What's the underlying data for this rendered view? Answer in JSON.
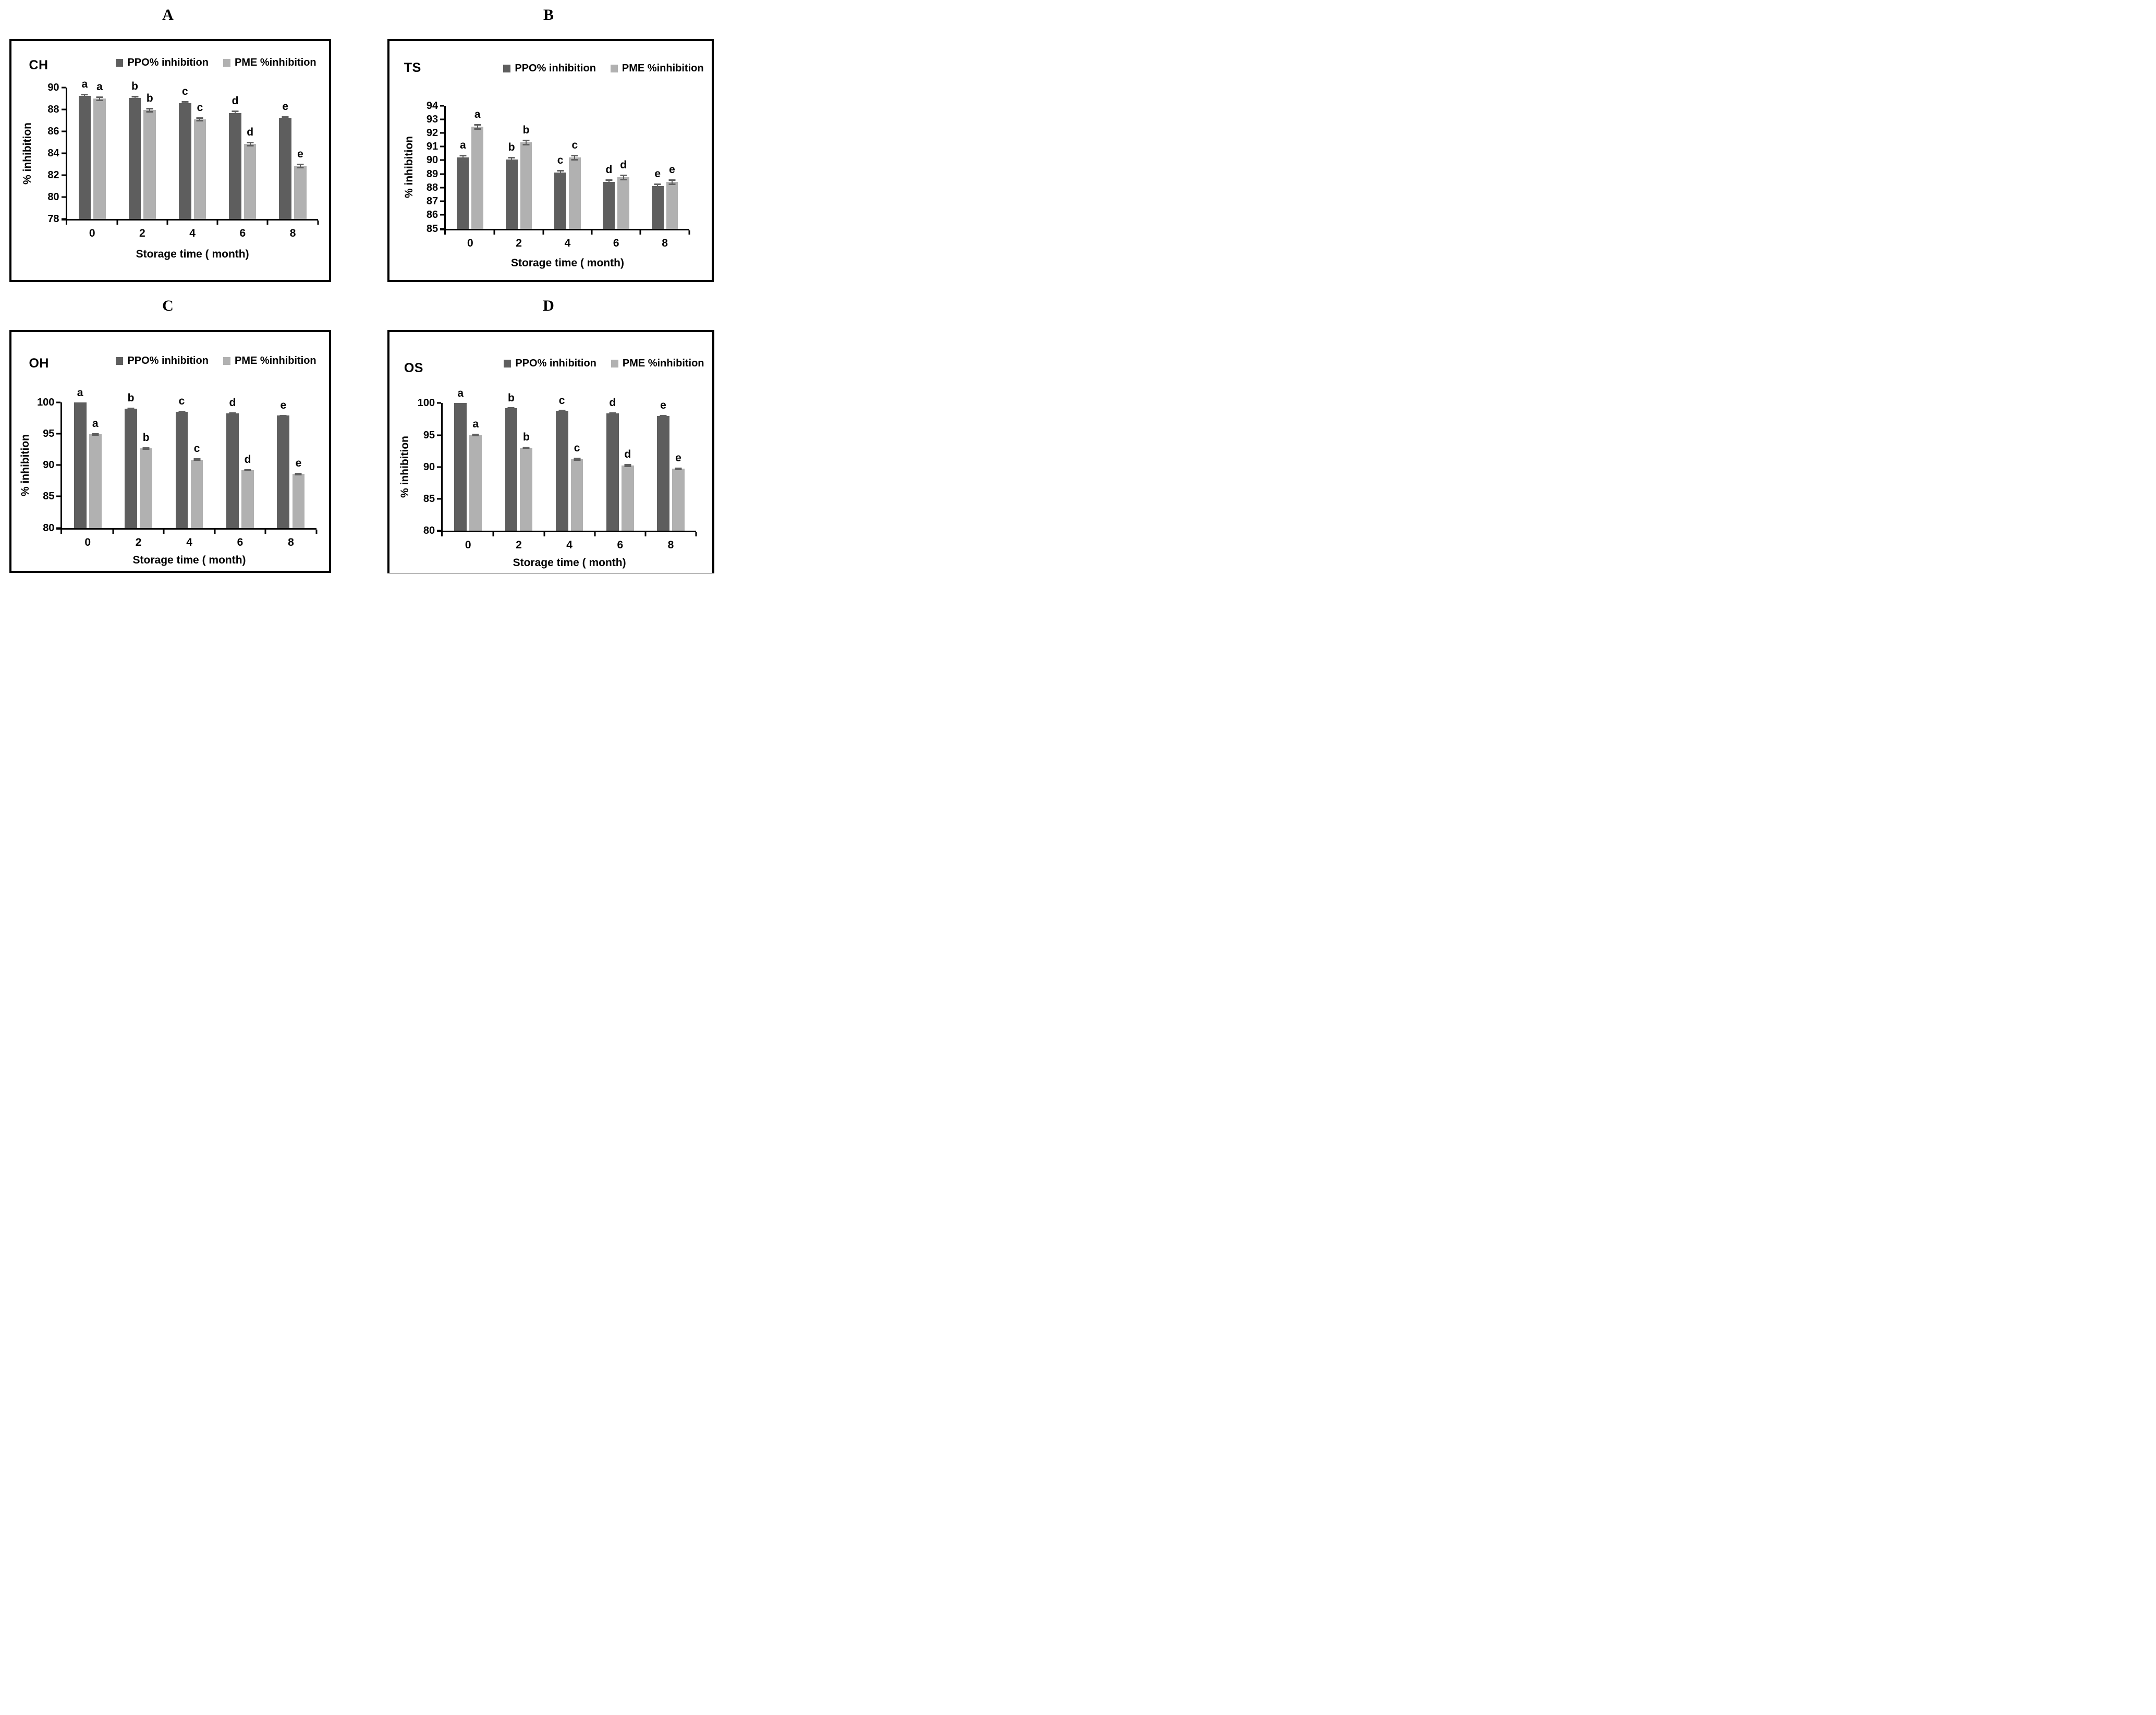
{
  "figure": {
    "series_legend": [
      "PPO% inhibition",
      "PME %inhibition"
    ],
    "x_axis_label": "Storage time ( month)",
    "y_axis_label": "% inhibition",
    "colors": {
      "ppo_bar": "#5e5e5e",
      "pme_bar": "#b1b1b1",
      "error_bar": "#5f5f5f",
      "axis": "#000000",
      "border": "#000000",
      "background": "#ffffff"
    }
  },
  "chart_data": [
    {
      "type": "bar",
      "panel_letter": "A",
      "code": "CH",
      "xlabel": "Storage time ( month)",
      "ylabel": "% inhibition",
      "categories": [
        "0",
        "2",
        "4",
        "6",
        "8"
      ],
      "ylim": [
        78,
        90
      ],
      "ytick_labels": [
        "78",
        "80",
        "82",
        "84",
        "86",
        "88",
        "90"
      ],
      "legend_position": "top-right",
      "grid": false,
      "series": [
        {
          "name": "PPO% inhibition",
          "values": [
            89.25,
            89.05,
            88.6,
            87.7,
            87.25
          ],
          "errors": [
            0.2,
            0.2,
            0.2,
            0.2,
            0.15
          ],
          "letters": [
            "a",
            "b",
            "c",
            "d",
            "e"
          ]
        },
        {
          "name": "PME %inhibition",
          "values": [
            89.0,
            87.95,
            87.1,
            84.85,
            82.85
          ],
          "errors": [
            0.2,
            0.2,
            0.2,
            0.2,
            0.2
          ],
          "letters": [
            "a",
            "b",
            "c",
            "d",
            "e"
          ]
        }
      ]
    },
    {
      "type": "bar",
      "panel_letter": "B",
      "code": "TS",
      "xlabel": "Storage time ( month)",
      "ylabel": "% inhibition",
      "categories": [
        "0",
        "2",
        "4",
        "6",
        "8"
      ],
      "ylim": [
        85,
        94
      ],
      "ytick_labels": [
        "85",
        "86",
        "87",
        "88",
        "89",
        "90",
        "91",
        "92",
        "93",
        "94"
      ],
      "legend_position": "top-right",
      "grid": false,
      "series": [
        {
          "name": "PPO% inhibition",
          "values": [
            90.2,
            90.05,
            89.1,
            88.4,
            88.1
          ],
          "errors": [
            0.2,
            0.2,
            0.2,
            0.2,
            0.2
          ],
          "letters": [
            "a",
            "b",
            "c",
            "d",
            "e"
          ]
        },
        {
          "name": "PME %inhibition",
          "values": [
            92.45,
            91.3,
            90.2,
            88.75,
            88.4
          ],
          "errors": [
            0.2,
            0.2,
            0.2,
            0.2,
            0.2
          ],
          "letters": [
            "a",
            "b",
            "c",
            "d",
            "e"
          ]
        }
      ]
    },
    {
      "type": "bar",
      "panel_letter": "C",
      "code": "OH",
      "xlabel": "Storage time ( month)",
      "ylabel": "% inhibition",
      "categories": [
        "0",
        "2",
        "4",
        "6",
        "8"
      ],
      "ylim": [
        80,
        100
      ],
      "ytick_labels": [
        "80",
        "85",
        "90",
        "95",
        "100"
      ],
      "legend_position": "top-right",
      "grid": false,
      "series": [
        {
          "name": "PPO% inhibition",
          "values": [
            100,
            99.0,
            98.5,
            98.3,
            97.9
          ],
          "errors": [
            0,
            0.15,
            0.15,
            0.15,
            0.15
          ],
          "letters": [
            "a",
            "b",
            "c",
            "d",
            "e"
          ]
        },
        {
          "name": "PME %inhibition",
          "values": [
            94.9,
            92.65,
            90.9,
            89.2,
            88.6
          ],
          "errors": [
            0.2,
            0.2,
            0.2,
            0.2,
            0.2
          ],
          "letters": [
            "a",
            "b",
            "c",
            "d",
            "e"
          ]
        }
      ]
    },
    {
      "type": "bar",
      "panel_letter": "D",
      "code": "OS",
      "xlabel": "Storage time ( month)",
      "ylabel": "% inhibition",
      "categories": [
        "0",
        "2",
        "4",
        "6",
        "8"
      ],
      "ylim": [
        80,
        100
      ],
      "ytick_labels": [
        "80",
        "85",
        "90",
        "95",
        "100"
      ],
      "legend_position": "top-right",
      "grid": false,
      "series": [
        {
          "name": "PPO% inhibition",
          "values": [
            100,
            99.2,
            98.8,
            98.4,
            98.0
          ],
          "errors": [
            0,
            0.1,
            0.1,
            0.15,
            0.15
          ],
          "letters": [
            "a",
            "b",
            "c",
            "d",
            "e"
          ]
        },
        {
          "name": "PME %inhibition",
          "values": [
            95.0,
            93.0,
            91.2,
            90.2,
            89.7
          ],
          "errors": [
            0.2,
            0.2,
            0.25,
            0.25,
            0.2
          ],
          "letters": [
            "a",
            "b",
            "c",
            "d",
            "e"
          ]
        }
      ]
    }
  ]
}
